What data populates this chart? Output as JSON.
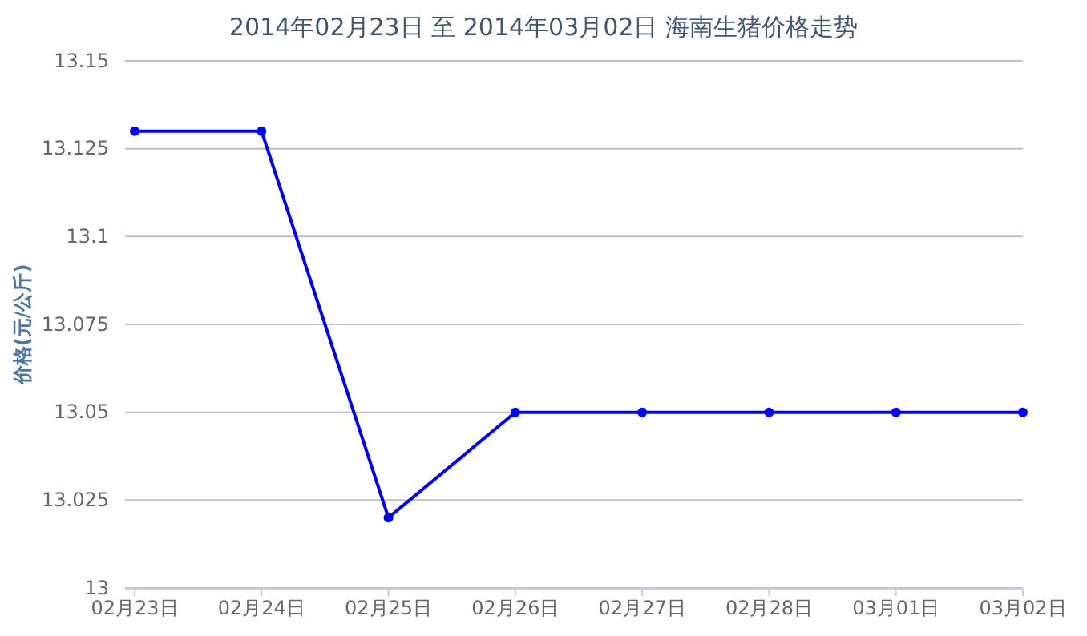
{
  "chart_data": {
    "type": "line",
    "title": "2014年02月23日 至 2014年03月02日 海南生猪价格走势",
    "ylabel": "价格(元/公斤)",
    "categories": [
      "02月23日",
      "02月24日",
      "02月25日",
      "02月26日",
      "02月27日",
      "02月28日",
      "03月01日",
      "03月02日"
    ],
    "series": [
      {
        "color": "#0000ff",
        "values": [
          13.13,
          13.13,
          13.02,
          13.05,
          13.05,
          13.05,
          13.05,
          13.05
        ]
      }
    ],
    "ylim": [
      13,
      13.15
    ],
    "yticks": [
      13,
      13.025,
      13.05,
      13.075,
      13.1,
      13.125,
      13.15
    ],
    "grid": "y",
    "marker": "circle",
    "line_style": "solid"
  }
}
